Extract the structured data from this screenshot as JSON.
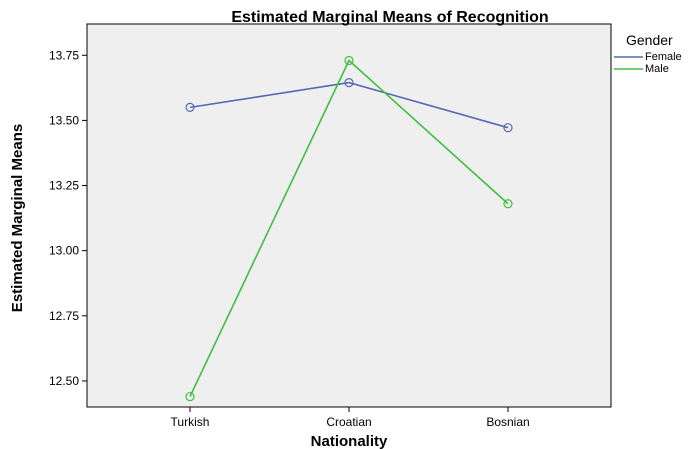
{
  "chart_data": {
    "type": "line",
    "title": "Estimated Marginal Means of Recognition",
    "xlabel": "Nationality",
    "ylabel": "Estimated Marginal Means",
    "categories": [
      "Turkish",
      "Croatian",
      "Bosnian"
    ],
    "ylim": [
      12.4,
      13.87
    ],
    "yticks": [
      12.5,
      12.75,
      13.0,
      13.25,
      13.5,
      13.75
    ],
    "ytick_labels": [
      "12.50",
      "12.75",
      "13.00",
      "13.25",
      "13.50",
      "13.75"
    ],
    "grid": false,
    "legend": {
      "title": "Gender",
      "placement": "right-top"
    },
    "series": [
      {
        "name": "Female",
        "color": "#5468b5",
        "values": [
          13.55,
          13.645,
          13.472
        ]
      },
      {
        "name": "Male",
        "color": "#3fbf3f",
        "values": [
          12.44,
          13.73,
          13.18
        ]
      }
    ]
  }
}
